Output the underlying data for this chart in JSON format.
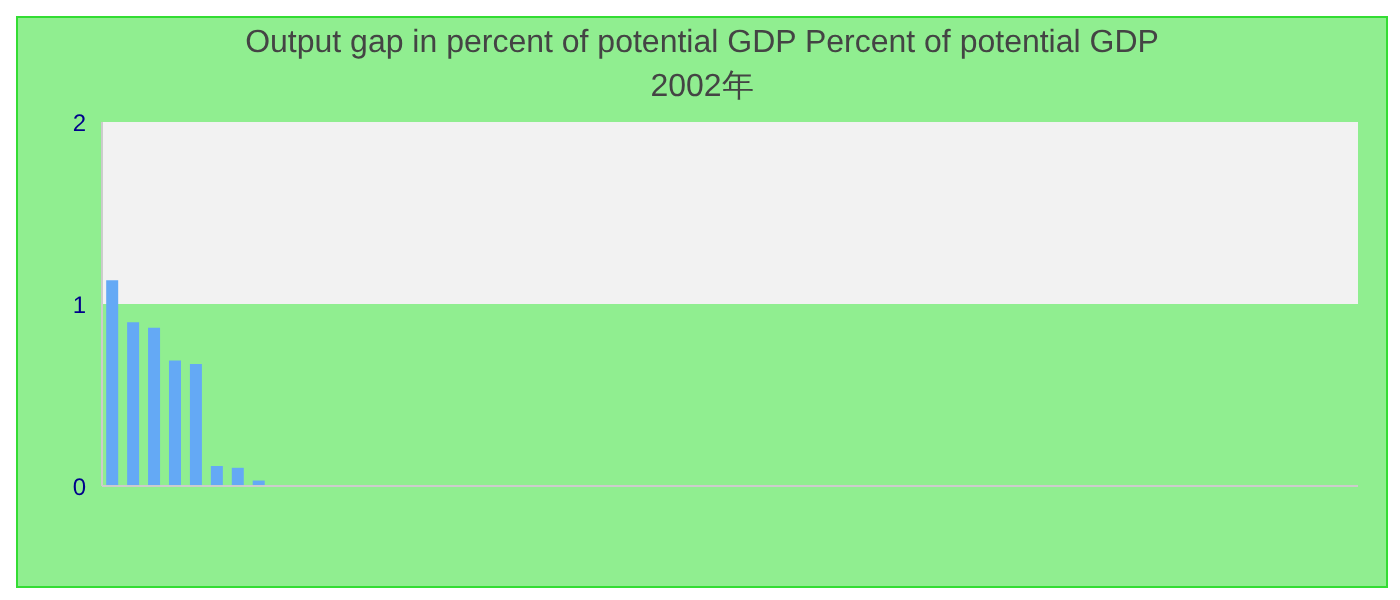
{
  "chart_data": {
    "type": "bar",
    "title": "Output gap in percent of potential GDP  Percent of potential GDP",
    "subtitle": "2002年",
    "categories": [
      null,
      null,
      null,
      null,
      null,
      null,
      null,
      null,
      null,
      null,
      null,
      null,
      null,
      null,
      null,
      null,
      null,
      null,
      null,
      null,
      null,
      null,
      null,
      null,
      null,
      null,
      null,
      null,
      null,
      null,
      null,
      null,
      null,
      null,
      null,
      null,
      null,
      null,
      null,
      null,
      null,
      null,
      null,
      null,
      null,
      null,
      null,
      null,
      null,
      null,
      null,
      null,
      null,
      null,
      null,
      null,
      null,
      null,
      null,
      null
    ],
    "values": [
      1.13,
      0.9,
      0.87,
      0.69,
      0.67,
      0.11,
      0.1,
      0.03,
      0,
      0,
      0,
      0,
      0,
      0,
      0,
      0,
      0,
      0,
      0,
      0,
      0,
      0,
      0,
      0,
      0,
      0,
      0,
      0,
      0,
      0,
      0,
      0,
      0,
      0,
      0,
      0,
      0,
      0,
      0,
      0,
      0,
      0,
      0,
      0,
      0,
      0,
      0,
      0,
      0,
      0,
      0,
      0,
      0,
      0,
      0,
      0,
      0,
      0,
      0,
      0
    ],
    "color": "#64a9f5",
    "ylim": [
      0,
      2
    ],
    "yticks": [
      0,
      1,
      2
    ],
    "grid": false,
    "bands": [
      {
        "axis": "y",
        "from": 1,
        "to": 2,
        "color": "#f2f2f2"
      }
    ]
  }
}
